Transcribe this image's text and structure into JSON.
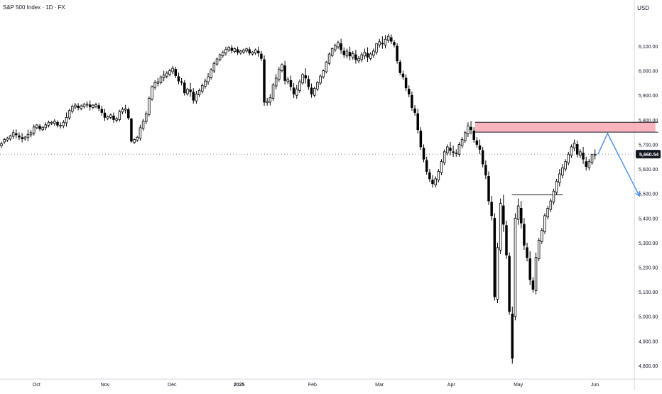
{
  "header": {
    "title": "S&P 500 Index · 1D · FX",
    "currency": "USD"
  },
  "colors": {
    "background": "#ffffff",
    "candle": "#000000",
    "up_fill": "#ffffff",
    "down_fill": "#000000",
    "resistance_zone": "#f7a1ad",
    "projection_arrow": "#4a90e2",
    "last_price_bg": "#131722",
    "last_price_text": "#ffffff"
  },
  "chart_data": {
    "type": "candlestick",
    "title": "S&P 500 Index · 1D · FX",
    "y_axis": {
      "unit": "USD",
      "ticks": [
        "6,100.00",
        "6,000.00",
        "5,900.00",
        "5,800.00",
        "5,700.00",
        "5,600.00",
        "5,500.00",
        "5,400.00",
        "5,300.00",
        "5,200.00",
        "5,100.00",
        "5,000.00",
        "4,900.00",
        "4,800.00"
      ],
      "tick_values": [
        6100,
        6000,
        5900,
        5800,
        5700,
        5600,
        5500,
        5400,
        5300,
        5200,
        5100,
        5000,
        4900,
        4800
      ],
      "range": [
        4745,
        6230
      ]
    },
    "x_axis": {
      "labels": [
        "Oct",
        "Nov",
        "Dec",
        "2025",
        "Feb",
        "Mar",
        "Apr",
        "May",
        "Jun"
      ],
      "label_positions": [
        22,
        65,
        107,
        149,
        195,
        237,
        282,
        324,
        372
      ],
      "bar_count": 395
    },
    "last_price": {
      "value": 5660.54,
      "label": "5,660.54"
    },
    "candles": [
      [
        5695,
        5711,
        5703
      ],
      [
        5710,
        5726,
        5720
      ],
      [
        5718,
        5731,
        5725
      ],
      [
        5722,
        5740,
        5735
      ],
      [
        5733,
        5760,
        5748
      ],
      [
        5744,
        5761,
        5739
      ],
      [
        5735,
        5749,
        5730
      ],
      [
        5728,
        5746,
        5723
      ],
      [
        5722,
        5734,
        5730
      ],
      [
        5728,
        5760,
        5741
      ],
      [
        5739,
        5758,
        5748
      ],
      [
        5746,
        5781,
        5771
      ],
      [
        5768,
        5783,
        5779
      ],
      [
        5774,
        5783,
        5764
      ],
      [
        5760,
        5774,
        5770
      ],
      [
        5768,
        5790,
        5780
      ],
      [
        5778,
        5797,
        5790
      ],
      [
        5786,
        5795,
        5790
      ],
      [
        5786,
        5803,
        5794
      ],
      [
        5790,
        5798,
        5778
      ],
      [
        5776,
        5790,
        5778
      ],
      [
        5776,
        5799,
        5790
      ],
      [
        5788,
        5830,
        5810
      ],
      [
        5808,
        5845,
        5838
      ],
      [
        5835,
        5862,
        5855
      ],
      [
        5852,
        5868,
        5860
      ],
      [
        5856,
        5868,
        5850
      ],
      [
        5846,
        5862,
        5857
      ],
      [
        5853,
        5868,
        5864
      ],
      [
        5860,
        5875,
        5864
      ],
      [
        5861,
        5879,
        5853
      ],
      [
        5850,
        5864,
        5860
      ],
      [
        5856,
        5870,
        5862
      ],
      [
        5858,
        5869,
        5847
      ],
      [
        5843,
        5857,
        5830
      ],
      [
        5828,
        5845,
        5810
      ],
      [
        5806,
        5818,
        5813
      ],
      [
        5810,
        5826,
        5820
      ],
      [
        5816,
        5830,
        5801
      ],
      [
        5798,
        5812,
        5805
      ],
      [
        5801,
        5841,
        5834
      ],
      [
        5832,
        5851,
        5843
      ],
      [
        5840,
        5861,
        5845
      ],
      [
        5842,
        5850,
        5808
      ],
      [
        5804,
        5808,
        5713
      ],
      [
        5708,
        5724,
        5720
      ],
      [
        5718,
        5735,
        5729
      ],
      [
        5726,
        5780,
        5768
      ],
      [
        5765,
        5804,
        5795
      ],
      [
        5793,
        5835,
        5825
      ],
      [
        5822,
        5895,
        5888
      ],
      [
        5885,
        5940,
        5935
      ],
      [
        5932,
        5962,
        5952
      ],
      [
        5949,
        5970,
        5955
      ],
      [
        5951,
        5980,
        5975
      ],
      [
        5972,
        6000,
        5982
      ],
      [
        5978,
        5998,
        5990
      ],
      [
        5986,
        6008,
        6000
      ],
      [
        5996,
        6020,
        6010
      ],
      [
        6006,
        6016,
        5980
      ],
      [
        5976,
        5992,
        5958
      ],
      [
        5955,
        5970,
        5953
      ],
      [
        5950,
        5962,
        5910
      ],
      [
        5906,
        5930,
        5925
      ],
      [
        5922,
        5950,
        5915
      ],
      [
        5913,
        5929,
        5880
      ],
      [
        5877,
        5918,
        5905
      ],
      [
        5902,
        5928,
        5920
      ],
      [
        5916,
        5948,
        5940
      ],
      [
        5937,
        5968,
        5958
      ],
      [
        5955,
        5990,
        5975
      ],
      [
        5972,
        6010,
        6003
      ],
      [
        5999,
        6038,
        6030
      ],
      [
        6027,
        6053,
        6048
      ],
      [
        6045,
        6070,
        6065
      ],
      [
        6061,
        6082,
        6075
      ],
      [
        6072,
        6098,
        6087
      ],
      [
        6084,
        6100,
        6095
      ],
      [
        6092,
        6105,
        6082
      ],
      [
        6078,
        6095,
        6090
      ],
      [
        6086,
        6098,
        6075
      ],
      [
        6072,
        6085,
        6080
      ],
      [
        6076,
        6090,
        6084
      ],
      [
        6080,
        6094,
        6089
      ],
      [
        6086,
        6096,
        6072
      ],
      [
        6068,
        6080,
        6076
      ],
      [
        6072,
        6090,
        6085
      ],
      [
        6080,
        6098,
        6072
      ],
      [
        6068,
        6080,
        6050
      ],
      [
        6045,
        6062,
        5872
      ],
      [
        5870,
        5889,
        5875
      ],
      [
        5872,
        5905,
        5890
      ],
      [
        5887,
        5950,
        5942
      ],
      [
        5938,
        5986,
        5970
      ],
      [
        5965,
        6015,
        6005
      ],
      [
        6000,
        6030,
        6025
      ],
      [
        6020,
        6040,
        5960
      ],
      [
        5955,
        5975,
        5965
      ],
      [
        5960,
        5980,
        5935
      ],
      [
        5930,
        5950,
        5905
      ],
      [
        5900,
        5942,
        5925
      ],
      [
        5920,
        5965,
        5955
      ],
      [
        5950,
        5990,
        5985
      ],
      [
        5980,
        6010,
        5970
      ],
      [
        5965,
        5980,
        5935
      ],
      [
        5930,
        5948,
        5905
      ],
      [
        5900,
        5935,
        5928
      ],
      [
        5925,
        5958,
        5952
      ],
      [
        5950,
        5985,
        5978
      ],
      [
        5975,
        6005,
        6000
      ],
      [
        5996,
        6040,
        6035
      ],
      [
        6030,
        6075,
        6068
      ],
      [
        6062,
        6095,
        6090
      ],
      [
        6085,
        6110,
        6102
      ],
      [
        6097,
        6122,
        6115
      ],
      [
        6110,
        6130,
        6085
      ],
      [
        6080,
        6095,
        6065
      ],
      [
        6060,
        6090,
        6080
      ],
      [
        6075,
        6098,
        6060
      ],
      [
        6055,
        6080,
        6070
      ],
      [
        6065,
        6085,
        6045
      ],
      [
        6040,
        6060,
        6050
      ],
      [
        6045,
        6075,
        6065
      ],
      [
        6060,
        6090,
        6075
      ],
      [
        6070,
        6095,
        6055
      ],
      [
        6050,
        6075,
        6068
      ],
      [
        6063,
        6090,
        6080
      ],
      [
        6075,
        6100,
        6110
      ],
      [
        6105,
        6130,
        6118
      ],
      [
        6112,
        6140,
        6110
      ],
      [
        6105,
        6145,
        6128
      ],
      [
        6123,
        6150,
        6140
      ],
      [
        6135,
        6148,
        6120
      ],
      [
        6115,
        6125,
        6105
      ],
      [
        6100,
        6112,
        6040
      ],
      [
        6035,
        6045,
        5992
      ],
      [
        5987,
        6000,
        5975
      ],
      [
        5970,
        5985,
        5930
      ],
      [
        5925,
        5940,
        5905
      ],
      [
        5900,
        5915,
        5850
      ],
      [
        5845,
        5860,
        5830
      ],
      [
        5825,
        5845,
        5760
      ],
      [
        5755,
        5770,
        5690
      ],
      [
        5685,
        5700,
        5640
      ],
      [
        5635,
        5650,
        5590
      ],
      [
        5585,
        5600,
        5560
      ],
      [
        5555,
        5575,
        5540
      ],
      [
        5535,
        5570,
        5560
      ],
      [
        5555,
        5600,
        5590
      ],
      [
        5585,
        5640,
        5630
      ],
      [
        5625,
        5680,
        5670
      ],
      [
        5665,
        5700,
        5690
      ],
      [
        5685,
        5710,
        5675
      ],
      [
        5670,
        5695,
        5668
      ],
      [
        5663,
        5680,
        5665
      ],
      [
        5660,
        5710,
        5700
      ],
      [
        5695,
        5730,
        5720
      ],
      [
        5715,
        5755,
        5748
      ],
      [
        5743,
        5790,
        5775
      ],
      [
        5770,
        5795,
        5760
      ],
      [
        5755,
        5770,
        5720
      ],
      [
        5715,
        5730,
        5700
      ],
      [
        5695,
        5720,
        5680
      ],
      [
        5675,
        5690,
        5620
      ],
      [
        5615,
        5635,
        5575
      ],
      [
        5570,
        5590,
        5470
      ],
      [
        5465,
        5490,
        5410
      ],
      [
        5400,
        5420,
        5080
      ],
      [
        5070,
        5300,
        5280
      ],
      [
        5270,
        5480,
        5460
      ],
      [
        5450,
        5495,
        5375
      ],
      [
        5370,
        5390,
        5250
      ],
      [
        5245,
        5260,
        5020
      ],
      [
        5010,
        5040,
        4830
      ],
      [
        5000,
        5420,
        5400
      ],
      [
        5395,
        5480,
        5450
      ],
      [
        5440,
        5470,
        5380
      ],
      [
        5375,
        5400,
        5290
      ],
      [
        5280,
        5300,
        5240
      ],
      [
        5235,
        5265,
        5150
      ],
      [
        5145,
        5160,
        5110
      ],
      [
        5105,
        5260,
        5240
      ],
      [
        5235,
        5320,
        5310
      ],
      [
        5305,
        5360,
        5350
      ],
      [
        5345,
        5420,
        5410
      ],
      [
        5405,
        5450,
        5440
      ],
      [
        5435,
        5480,
        5470
      ],
      [
        5465,
        5520,
        5510
      ],
      [
        5505,
        5560,
        5550
      ],
      [
        5545,
        5600,
        5580
      ],
      [
        5575,
        5620,
        5605
      ],
      [
        5600,
        5640,
        5630
      ],
      [
        5625,
        5670,
        5660
      ],
      [
        5655,
        5700,
        5690
      ],
      [
        5685,
        5720,
        5705
      ],
      [
        5700,
        5715,
        5660
      ],
      [
        5655,
        5680,
        5670
      ],
      [
        5665,
        5690,
        5640
      ],
      [
        5630,
        5650,
        5610
      ],
      [
        5605,
        5640,
        5630
      ],
      [
        5625,
        5655,
        5660
      ],
      [
        5655,
        5680,
        5660
      ]
    ],
    "annotations": {
      "resistance_zone": {
        "low": 5750,
        "high": 5790,
        "start_index": 297,
        "end_index": 410
      },
      "support_line": {
        "value": 5495,
        "start_index": 320,
        "end_index": 352
      },
      "projection_path": {
        "points": [
          [
            374,
            5660
          ],
          [
            380,
            5745
          ],
          [
            400,
            5490
          ]
        ]
      }
    }
  }
}
